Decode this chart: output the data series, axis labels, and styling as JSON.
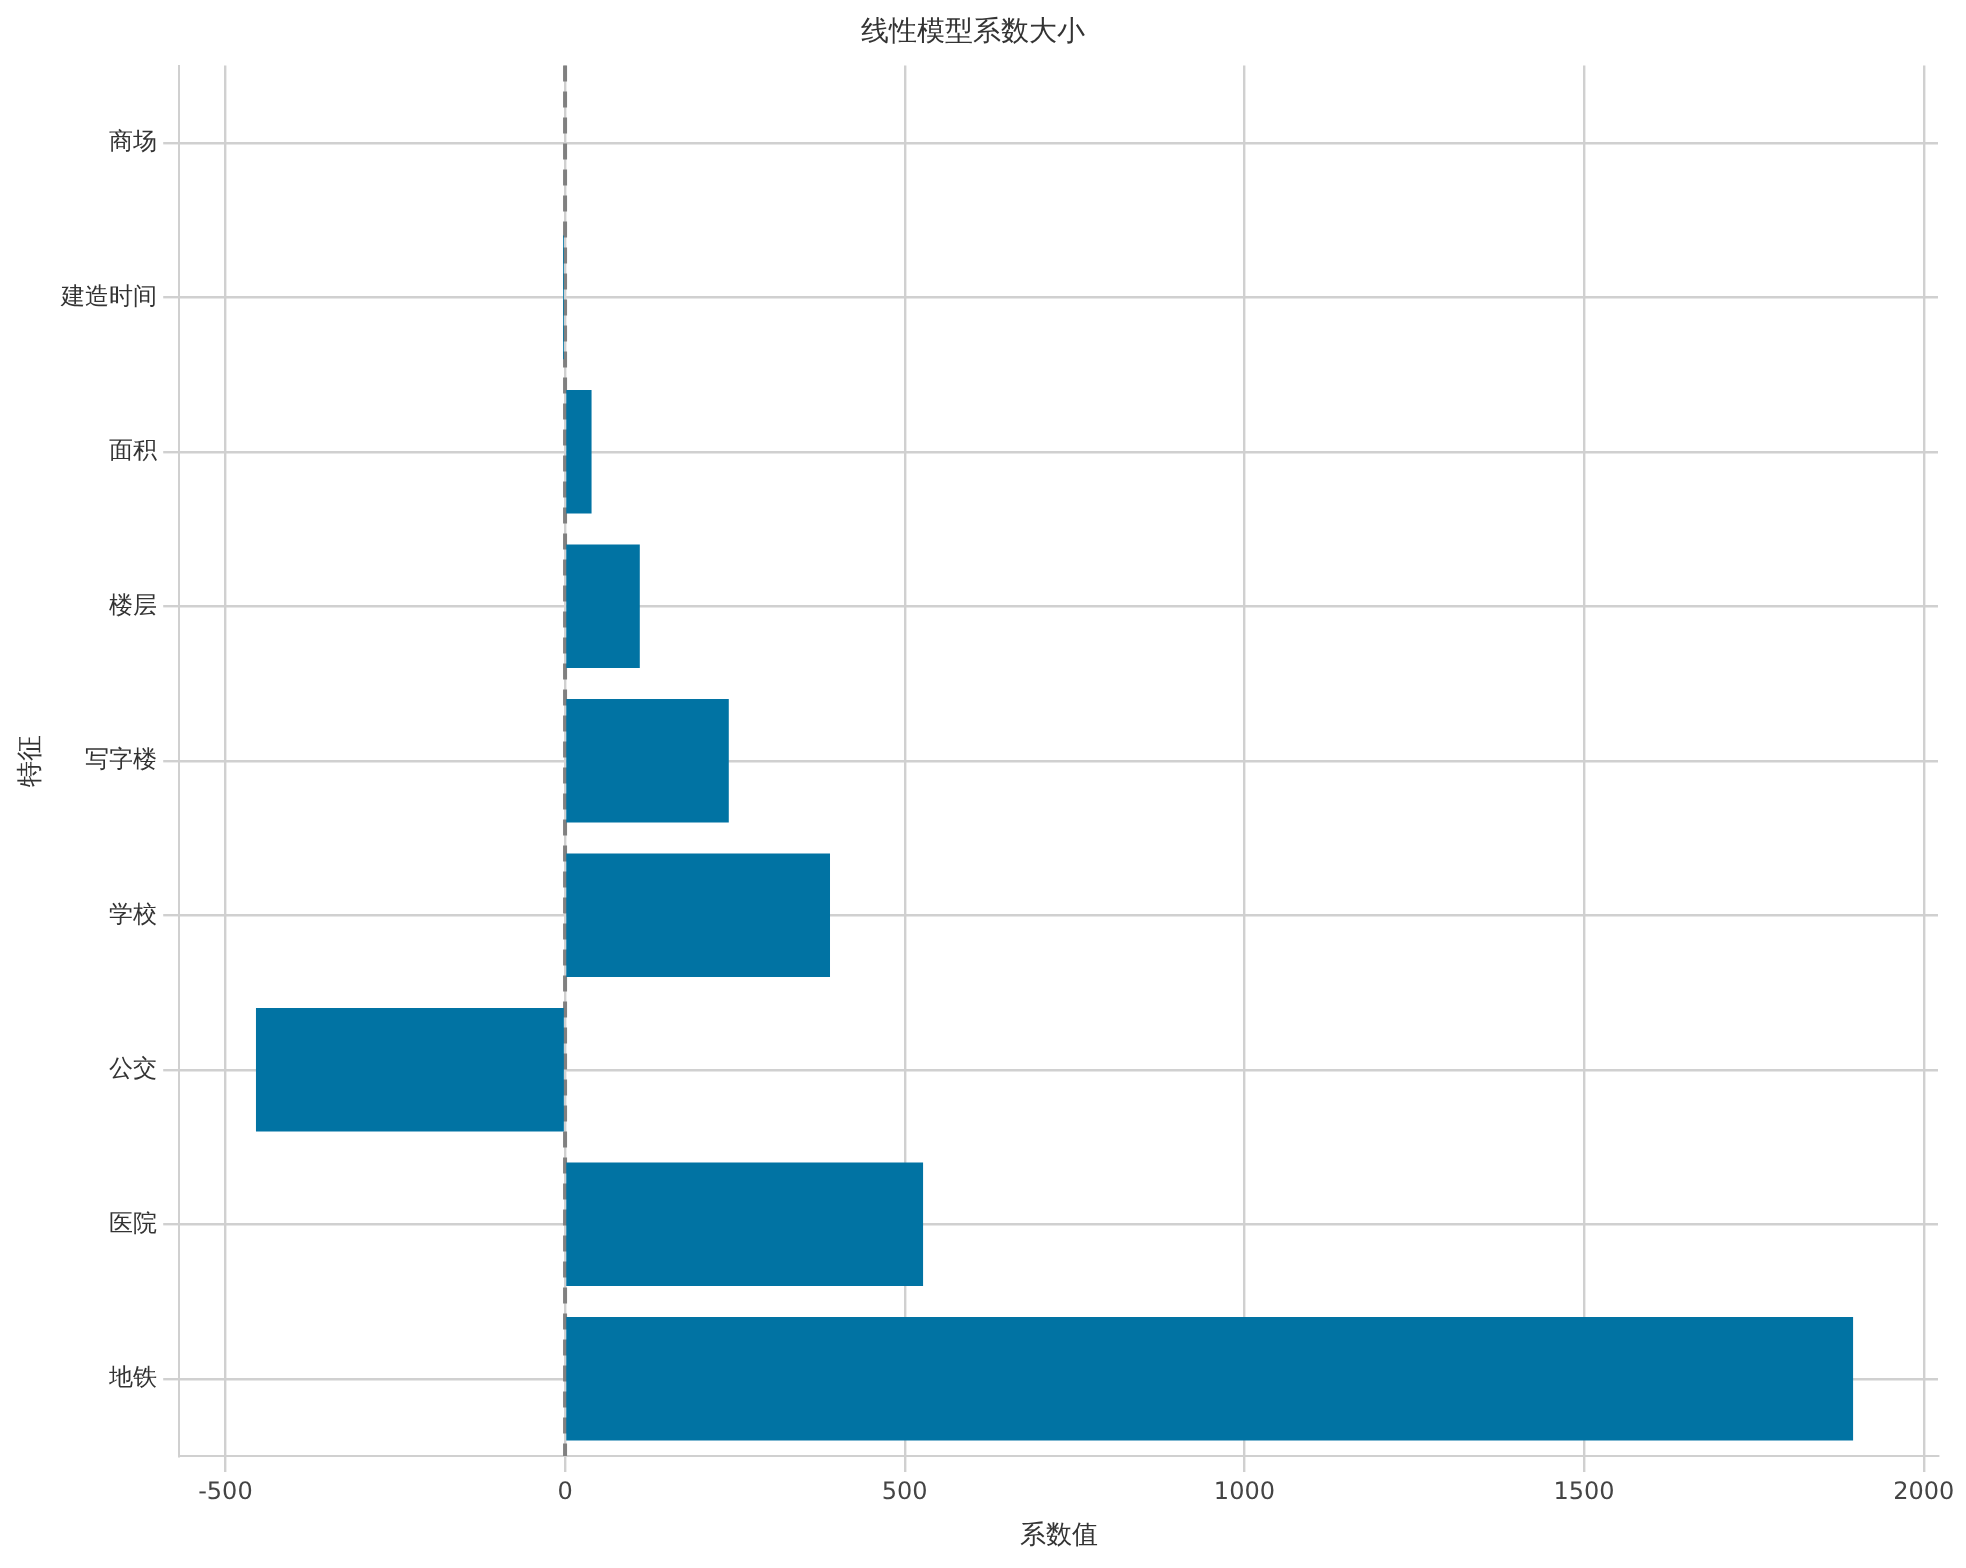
{
  "chart_data": {
    "type": "bar",
    "orientation": "horizontal",
    "title": "线性模型系数大小",
    "xlabel": "系数值",
    "ylabel": "特征",
    "categories": [
      "商场",
      "建造时间",
      "面积",
      "楼层",
      "写字楼",
      "学校",
      "公交",
      "医院",
      "地铁"
    ],
    "values": [
      0,
      -3,
      39,
      110,
      241,
      390,
      -455,
      527,
      1896
    ],
    "color": "#0173a3",
    "xlim": [
      -568,
      2021
    ],
    "xticks": [
      -500,
      0,
      500,
      1000,
      1500,
      2000
    ],
    "grid": true,
    "legend": false,
    "ref_lines": [
      {
        "axis": "x",
        "value": 0,
        "color": "#808080",
        "line_style": "dashed"
      }
    ]
  }
}
